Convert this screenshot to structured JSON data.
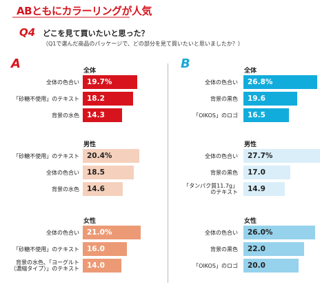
{
  "header": {
    "headline": "ABともにカラーリングが人気",
    "q_number": "Q4",
    "question": "どこを見て買いたいと思った？",
    "subquestion": "（Q1で選んだ商品のパッケージで、どの部分を見て買いたいと思いましたか？）"
  },
  "colors": {
    "accent_red": "#d7141d",
    "accent_blue": "#1aa7d8"
  },
  "chart_data": [
    {
      "type": "bar",
      "panel": "A",
      "groups": [
        {
          "title": "全体",
          "bar_color": "#d7141d",
          "value_color": "#ffffff",
          "categories": [
            "全体の色合い",
            "「砂糖不使用」のテキスト",
            "背景の水色"
          ],
          "values": [
            19.7,
            18.2,
            14.3
          ],
          "labels": [
            "19.7%",
            "18.2",
            "14.3"
          ]
        },
        {
          "title": "男性",
          "bar_color": "#f5d0bc",
          "value_color": "#222222",
          "categories": [
            "「砂糖不使用」のテキスト",
            "全体の色合い",
            "背景の水色"
          ],
          "values": [
            20.4,
            18.5,
            14.6
          ],
          "labels": [
            "20.4%",
            "18.5",
            "14.6"
          ]
        },
        {
          "title": "女性",
          "bar_color": "#ec9a75",
          "value_color": "#ffffff",
          "categories": [
            "全体の色合い",
            "「砂糖不使用」のテキスト",
            "背景の水色、「ヨーグルト\n（濃縮タイプ）」のテキスト"
          ],
          "values": [
            21.0,
            16.0,
            14.0
          ],
          "labels": [
            "21.0%",
            "16.0",
            "14.0"
          ]
        }
      ]
    },
    {
      "type": "bar",
      "panel": "B",
      "groups": [
        {
          "title": "全体",
          "bar_color": "#12acdc",
          "value_color": "#ffffff",
          "categories": [
            "全体の色合い",
            "背景の黒色",
            "「OIKOS」のロゴ"
          ],
          "values": [
            26.8,
            19.6,
            16.5
          ],
          "labels": [
            "26.8%",
            "19.6",
            "16.5"
          ]
        },
        {
          "title": "男性",
          "bar_color": "#d9eef8",
          "value_color": "#222222",
          "categories": [
            "全体の色合い",
            "背景の黒色",
            "「タンパク質11.7g」\nのテキスト"
          ],
          "values": [
            27.7,
            17.0,
            14.9
          ],
          "labels": [
            "27.7%",
            "17.0",
            "14.9"
          ]
        },
        {
          "title": "女性",
          "bar_color": "#96d2ec",
          "value_color": "#222222",
          "categories": [
            "全体の色合い",
            "背景の黒色",
            "「OIKOS」のロゴ"
          ],
          "values": [
            26.0,
            22.0,
            20.0
          ],
          "labels": [
            "26.0%",
            "22.0",
            "20.0"
          ]
        }
      ]
    }
  ]
}
